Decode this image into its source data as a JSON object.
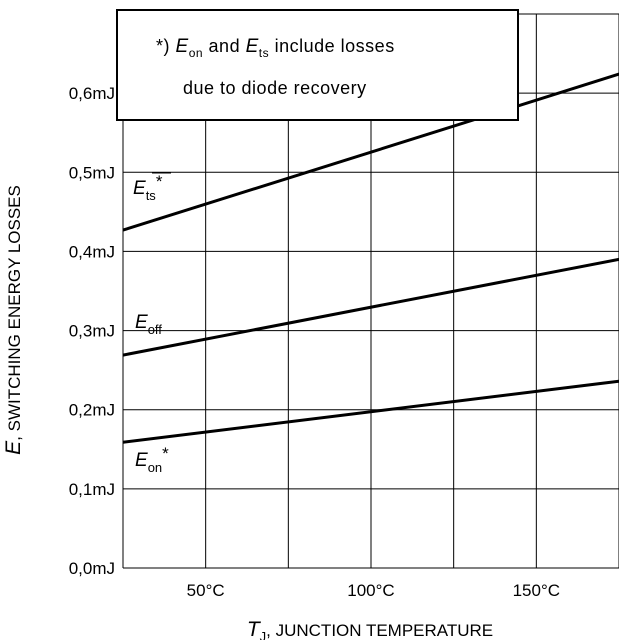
{
  "chart_data": {
    "type": "line",
    "x_unit": "°C",
    "xlim": [
      25,
      175
    ],
    "ylim": [
      0.0,
      0.7
    ],
    "x_gridlines": [
      25,
      50,
      75,
      100,
      125,
      150,
      175
    ],
    "y_gridlines": [
      0.0,
      0.1,
      0.2,
      0.3,
      0.4,
      0.5,
      0.6,
      0.7
    ],
    "x_ticks": [
      {
        "value": 50,
        "label": "50°C"
      },
      {
        "value": 100,
        "label": "100°C"
      },
      {
        "value": 150,
        "label": "150°C"
      }
    ],
    "y_ticks": [
      {
        "value": 0.0,
        "label": "0,0mJ"
      },
      {
        "value": 0.1,
        "label": "0,1mJ"
      },
      {
        "value": 0.2,
        "label": "0,2mJ"
      },
      {
        "value": 0.3,
        "label": "0,3mJ"
      },
      {
        "value": 0.4,
        "label": "0,4mJ"
      },
      {
        "value": 0.5,
        "label": "0,5mJ"
      },
      {
        "value": 0.6,
        "label": "0,6mJ"
      }
    ],
    "grid": true,
    "xlabel": {
      "symbol": "T",
      "subscript": "J",
      "text": ", JUNCTION TEMPERATURE"
    },
    "ylabel": {
      "symbol": "E",
      "text": ", SWITCHING ENERGY LOSSES"
    },
    "series": [
      {
        "name": "E_ts*",
        "label_symbol": "E",
        "label_subscript": "ts",
        "label_suffix": "*",
        "x": [
          25,
          175
        ],
        "y": [
          0.427,
          0.624
        ]
      },
      {
        "name": "E_off",
        "label_symbol": "E",
        "label_subscript": "off",
        "label_suffix": "",
        "x": [
          25,
          175
        ],
        "y": [
          0.269,
          0.39
        ]
      },
      {
        "name": "E_on*",
        "label_symbol": "E",
        "label_subscript": "on",
        "label_suffix": "*",
        "x": [
          25,
          175
        ],
        "y": [
          0.159,
          0.236
        ]
      }
    ],
    "note": {
      "line1_prefix": "*) ",
      "line1_e1": "E",
      "line1_s1": "on",
      "line1_mid": " and ",
      "line1_e2": "E",
      "line1_s2": "ts",
      "line1_suffix": " include losses",
      "line2": "due to diode recovery"
    }
  }
}
